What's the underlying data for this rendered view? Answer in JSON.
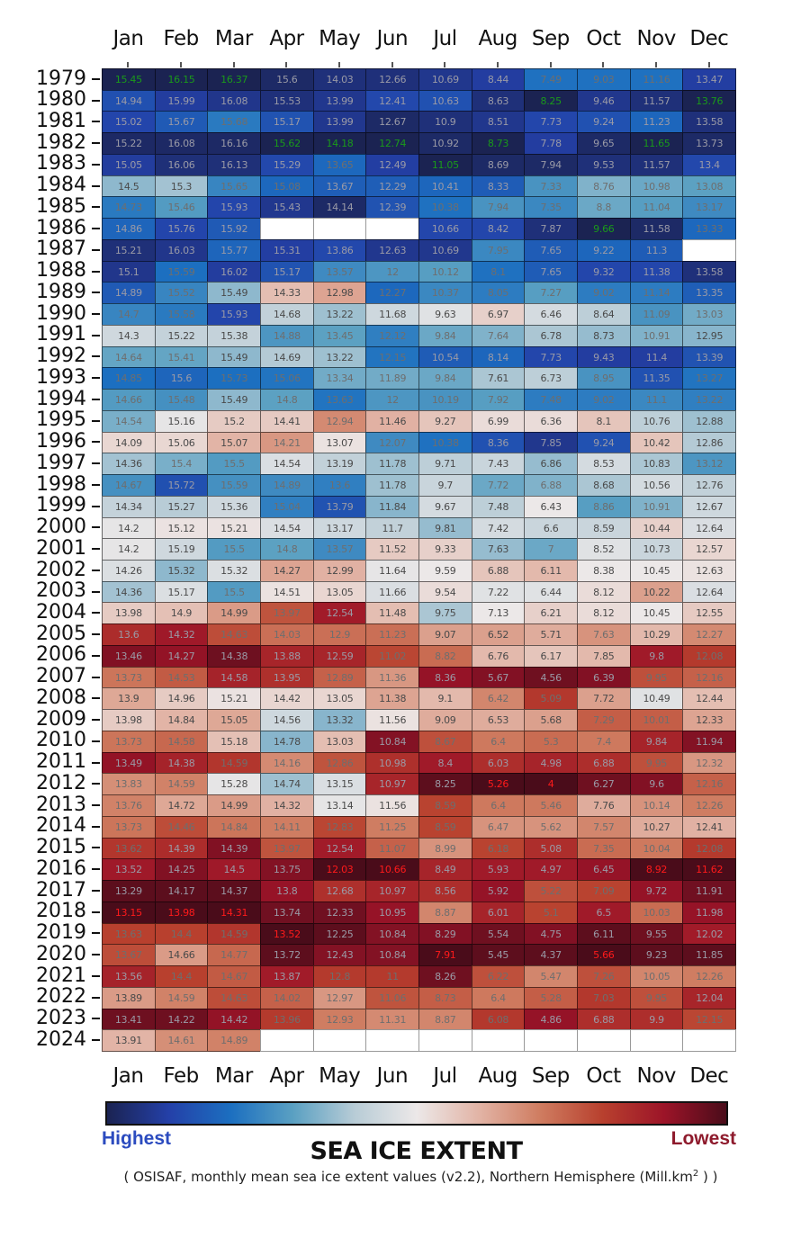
{
  "chart_data": {
    "type": "heatmap",
    "title": "SEA ICE EXTENT",
    "subtitle": "( OSISAF, monthly mean sea ice extent values (v2.2), Northern Hemisphere (Mill.km",
    "subtitle_unit_sup": "2",
    "subtitle_end": ") )",
    "legend": {
      "high_label": "Highest",
      "low_label": "Lowest",
      "placement": "bottom"
    },
    "colors": {
      "highest": "#1b2352",
      "lowest": "#4a0c1a",
      "max_text": "#1a9a1a",
      "min_text": "#ff1a1a",
      "text": "#6e6e6e"
    },
    "months": [
      "Jan",
      "Feb",
      "Mar",
      "Apr",
      "May",
      "Jun",
      "Jul",
      "Aug",
      "Sep",
      "Oct",
      "Nov",
      "Dec"
    ],
    "years": [
      1979,
      1980,
      1981,
      1982,
      1983,
      1984,
      1985,
      1986,
      1987,
      1988,
      1989,
      1990,
      1991,
      1992,
      1993,
      1994,
      1995,
      1996,
      1997,
      1998,
      1999,
      2000,
      2001,
      2002,
      2003,
      2004,
      2005,
      2006,
      2007,
      2008,
      2009,
      2010,
      2011,
      2012,
      2013,
      2014,
      2015,
      2016,
      2017,
      2018,
      2019,
      2020,
      2021,
      2022,
      2023,
      2024
    ],
    "values": [
      [
        15.45,
        16.15,
        16.37,
        15.6,
        14.03,
        12.66,
        10.69,
        8.44,
        7.49,
        9.03,
        11.16,
        13.47
      ],
      [
        14.94,
        15.99,
        16.08,
        15.53,
        13.99,
        12.41,
        10.63,
        8.63,
        8.25,
        9.46,
        11.57,
        13.76
      ],
      [
        15.02,
        15.67,
        15.68,
        15.17,
        13.99,
        12.67,
        10.9,
        8.51,
        7.73,
        9.24,
        11.23,
        13.58
      ],
      [
        15.22,
        16.08,
        16.16,
        15.62,
        14.18,
        12.74,
        10.92,
        8.73,
        7.78,
        9.65,
        11.65,
        13.73
      ],
      [
        15.05,
        16.06,
        16.13,
        15.29,
        13.65,
        12.49,
        11.05,
        8.69,
        7.94,
        9.53,
        11.57,
        13.4
      ],
      [
        14.5,
        15.3,
        15.65,
        15.08,
        13.67,
        12.29,
        10.41,
        8.33,
        7.33,
        8.76,
        10.98,
        13.08
      ],
      [
        14.73,
        15.46,
        15.93,
        15.43,
        14.14,
        12.39,
        10.38,
        7.94,
        7.35,
        8.8,
        11.04,
        13.17
      ],
      [
        14.86,
        15.76,
        15.92,
        null,
        null,
        null,
        10.66,
        8.42,
        7.87,
        9.66,
        11.58,
        13.33
      ],
      [
        15.21,
        16.03,
        15.77,
        15.31,
        13.86,
        12.63,
        10.69,
        7.95,
        7.65,
        9.22,
        11.3,
        null
      ],
      [
        15.1,
        15.59,
        16.02,
        15.17,
        13.57,
        12.0,
        10.12,
        8.1,
        7.65,
        9.32,
        11.38,
        13.58
      ],
      [
        14.89,
        15.52,
        15.49,
        14.33,
        12.98,
        12.27,
        10.37,
        8.05,
        7.27,
        9.02,
        11.14,
        13.35
      ],
      [
        14.7,
        15.58,
        15.93,
        14.68,
        13.22,
        11.68,
        9.63,
        6.97,
        6.46,
        8.64,
        11.09,
        13.03
      ],
      [
        14.3,
        15.22,
        15.38,
        14.88,
        13.45,
        12.12,
        9.84,
        7.64,
        6.78,
        8.73,
        10.91,
        12.95
      ],
      [
        14.64,
        15.41,
        15.49,
        14.69,
        13.22,
        12.15,
        10.54,
        8.14,
        7.73,
        9.43,
        11.4,
        13.39
      ],
      [
        14.85,
        15.6,
        15.73,
        15.06,
        13.34,
        11.89,
        9.84,
        7.61,
        6.73,
        8.95,
        11.35,
        13.27
      ],
      [
        14.66,
        15.48,
        15.49,
        14.8,
        13.63,
        12.0,
        10.19,
        7.92,
        7.48,
        9.02,
        11.1,
        13.22
      ],
      [
        14.54,
        15.16,
        15.2,
        14.41,
        12.94,
        11.46,
        9.27,
        6.99,
        6.36,
        8.1,
        10.76,
        12.88
      ],
      [
        14.09,
        15.06,
        15.07,
        14.21,
        13.07,
        12.07,
        10.38,
        8.36,
        7.85,
        9.24,
        10.42,
        12.86
      ],
      [
        14.36,
        15.4,
        15.5,
        14.54,
        13.19,
        11.78,
        9.71,
        7.43,
        6.86,
        8.53,
        10.83,
        13.12
      ],
      [
        14.67,
        15.72,
        15.59,
        14.89,
        13.6,
        11.78,
        9.7,
        7.72,
        6.88,
        8.68,
        10.56,
        12.76
      ],
      [
        14.34,
        15.27,
        15.36,
        15.04,
        13.79,
        11.84,
        9.67,
        7.48,
        6.43,
        8.86,
        10.91,
        12.67
      ],
      [
        14.2,
        15.12,
        15.21,
        14.54,
        13.17,
        11.7,
        9.81,
        7.42,
        6.6,
        8.59,
        10.44,
        12.64
      ],
      [
        14.2,
        15.19,
        15.5,
        14.8,
        13.57,
        11.52,
        9.33,
        7.63,
        7.0,
        8.52,
        10.73,
        12.57
      ],
      [
        14.26,
        15.32,
        15.32,
        14.27,
        12.99,
        11.64,
        9.59,
        6.88,
        6.11,
        8.38,
        10.45,
        12.63
      ],
      [
        14.36,
        15.17,
        15.5,
        14.51,
        13.05,
        11.66,
        9.54,
        7.22,
        6.44,
        8.12,
        10.22,
        12.64
      ],
      [
        13.98,
        14.9,
        14.99,
        13.97,
        12.54,
        11.48,
        9.75,
        7.13,
        6.21,
        8.12,
        10.45,
        12.55
      ],
      [
        13.6,
        14.32,
        14.63,
        14.03,
        12.9,
        11.23,
        9.07,
        6.52,
        5.71,
        7.63,
        10.29,
        12.27
      ],
      [
        13.46,
        14.27,
        14.38,
        13.88,
        12.59,
        11.02,
        8.82,
        6.76,
        6.17,
        7.85,
        9.8,
        12.08
      ],
      [
        13.73,
        14.53,
        14.58,
        13.95,
        12.89,
        11.36,
        8.36,
        5.67,
        4.56,
        6.39,
        9.95,
        12.16
      ],
      [
        13.9,
        14.96,
        15.21,
        14.42,
        13.05,
        11.38,
        9.1,
        6.42,
        5.09,
        7.72,
        10.49,
        12.44
      ],
      [
        13.98,
        14.84,
        15.05,
        14.56,
        13.32,
        11.56,
        9.09,
        6.53,
        5.68,
        7.29,
        10.01,
        12.33
      ],
      [
        13.73,
        14.58,
        15.18,
        14.78,
        13.03,
        10.84,
        8.67,
        6.4,
        5.3,
        7.4,
        9.84,
        11.94
      ],
      [
        13.49,
        14.38,
        14.59,
        14.16,
        12.86,
        10.98,
        8.4,
        6.03,
        4.98,
        6.88,
        9.95,
        12.32
      ],
      [
        13.83,
        14.59,
        15.28,
        14.74,
        13.15,
        10.97,
        8.25,
        5.26,
        4.0,
        6.27,
        9.6,
        12.16
      ],
      [
        13.76,
        14.72,
        14.99,
        14.32,
        13.14,
        11.56,
        8.59,
        6.4,
        5.46,
        7.76,
        10.14,
        12.26
      ],
      [
        13.73,
        14.46,
        14.84,
        14.11,
        12.83,
        11.25,
        8.59,
        6.47,
        5.62,
        7.57,
        10.27,
        12.41
      ],
      [
        13.62,
        14.39,
        14.39,
        13.97,
        12.54,
        11.07,
        8.99,
        6.18,
        5.08,
        7.35,
        10.04,
        12.08
      ],
      [
        13.52,
        14.25,
        14.5,
        13.75,
        12.03,
        10.66,
        8.49,
        5.93,
        4.97,
        6.45,
        8.92,
        11.62
      ],
      [
        13.29,
        14.17,
        14.37,
        13.8,
        12.68,
        10.97,
        8.56,
        5.92,
        5.22,
        7.09,
        9.72,
        11.91
      ],
      [
        13.15,
        13.98,
        14.31,
        13.74,
        12.33,
        10.95,
        8.87,
        6.01,
        5.1,
        6.5,
        10.03,
        11.98
      ],
      [
        13.63,
        14.4,
        14.59,
        13.52,
        12.25,
        10.84,
        8.29,
        5.54,
        4.75,
        6.11,
        9.55,
        12.02
      ],
      [
        13.67,
        14.66,
        14.77,
        13.72,
        12.43,
        10.84,
        7.91,
        5.45,
        4.37,
        5.66,
        9.23,
        11.85
      ],
      [
        13.56,
        14.4,
        14.67,
        13.87,
        12.8,
        11.0,
        8.26,
        6.22,
        5.47,
        7.26,
        10.05,
        12.26
      ],
      [
        13.89,
        14.59,
        14.63,
        14.02,
        12.97,
        11.06,
        8.73,
        6.4,
        5.28,
        7.03,
        9.95,
        12.04
      ],
      [
        13.41,
        14.22,
        14.42,
        13.96,
        12.93,
        11.31,
        8.87,
        6.08,
        4.86,
        6.88,
        9.9,
        12.15
      ],
      [
        13.91,
        14.61,
        14.89,
        null,
        null,
        null,
        null,
        null,
        null,
        null,
        null,
        null
      ]
    ]
  }
}
